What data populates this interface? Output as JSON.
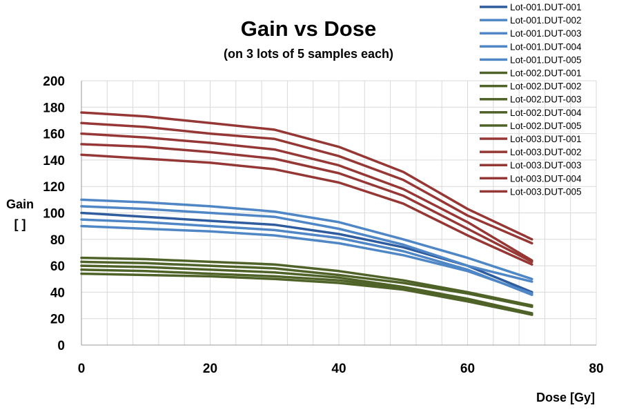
{
  "chart_data": {
    "type": "line",
    "title": "Gain vs Dose",
    "subtitle": "(on 3 lots of 5 samples each)",
    "xlabel": "Dose [Gy]",
    "ylabel_lines": [
      "Gain",
      "[ ]"
    ],
    "xlim": [
      0,
      80
    ],
    "ylim": [
      0,
      200
    ],
    "x_ticks": [
      0,
      20,
      40,
      60,
      80
    ],
    "y_ticks": [
      0,
      20,
      40,
      60,
      80,
      100,
      120,
      140,
      160,
      180,
      200
    ],
    "x_minor_step": 4,
    "grid": true,
    "legend_position": "top-right",
    "x": [
      0,
      10,
      20,
      30,
      40,
      50,
      60,
      70
    ],
    "series": [
      {
        "name": "Lot-001.DUT-001",
        "color": "#2e5c9e",
        "values": [
          100,
          97,
          94,
          91,
          84,
          74,
          60,
          40
        ]
      },
      {
        "name": "Lot-001.DUT-002",
        "color": "#4f86c6",
        "values": [
          105,
          103,
          100,
          97,
          88,
          76,
          60,
          48
        ]
      },
      {
        "name": "Lot-001.DUT-003",
        "color": "#4f86c6",
        "values": [
          95,
          93,
          90,
          87,
          81,
          71,
          57,
          38
        ]
      },
      {
        "name": "Lot-001.DUT-004",
        "color": "#4f86c6",
        "values": [
          110,
          108,
          105,
          101,
          93,
          80,
          66,
          50
        ]
      },
      {
        "name": "Lot-001.DUT-005",
        "color": "#4f86c6",
        "values": [
          90,
          88,
          86,
          83,
          77,
          68,
          56,
          39
        ]
      },
      {
        "name": "Lot-002.DUT-001",
        "color": "#4f6228",
        "values": [
          66,
          65,
          63,
          61,
          56,
          49,
          40,
          30
        ]
      },
      {
        "name": "Lot-002.DUT-002",
        "color": "#4f6228",
        "values": [
          63,
          62,
          60,
          58,
          53,
          47,
          39,
          29
        ]
      },
      {
        "name": "Lot-002.DUT-003",
        "color": "#4f6228",
        "values": [
          60,
          59,
          57,
          55,
          51,
          44,
          35,
          24
        ]
      },
      {
        "name": "Lot-002.DUT-004",
        "color": "#4f6228",
        "values": [
          57,
          56,
          54,
          52,
          49,
          43,
          34,
          23
        ]
      },
      {
        "name": "Lot-002.DUT-005",
        "color": "#4f6228",
        "values": [
          54,
          53,
          52,
          50,
          47,
          42,
          33,
          23
        ]
      },
      {
        "name": "Lot-003.DUT-001",
        "color": "#953735",
        "values": [
          176,
          173,
          168,
          163,
          150,
          131,
          103,
          80
        ]
      },
      {
        "name": "Lot-003.DUT-002",
        "color": "#953735",
        "values": [
          168,
          165,
          160,
          156,
          143,
          125,
          98,
          77
        ]
      },
      {
        "name": "Lot-003.DUT-003",
        "color": "#953735",
        "values": [
          160,
          157,
          153,
          148,
          136,
          118,
          93,
          64
        ]
      },
      {
        "name": "Lot-003.DUT-004",
        "color": "#953735",
        "values": [
          152,
          150,
          146,
          141,
          130,
          113,
          88,
          63
        ]
      },
      {
        "name": "Lot-003.DUT-005",
        "color": "#953735",
        "values": [
          144,
          141,
          138,
          133,
          123,
          107,
          83,
          61
        ]
      }
    ]
  }
}
